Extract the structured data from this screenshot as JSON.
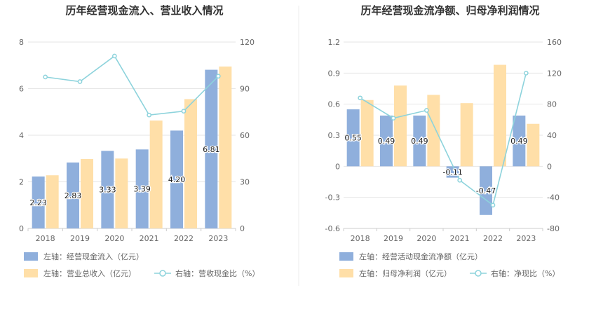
{
  "chart_data": [
    {
      "type": "bar",
      "title": "历年经营现金流入、营业收入情况",
      "categories": [
        "2018",
        "2019",
        "2020",
        "2021",
        "2022",
        "2023"
      ],
      "left_axis": {
        "ylim": [
          0,
          8
        ],
        "ticks": [
          "0",
          "2",
          "4",
          "6",
          "8"
        ]
      },
      "right_axis": {
        "ylim": [
          0,
          120
        ],
        "ticks": [
          "0",
          "30",
          "60",
          "90",
          "120"
        ]
      },
      "grid": true,
      "legend_position": "bottom",
      "series": [
        {
          "name": "经营现金流入（亿元）",
          "legend": "左轴：经营现金流入（亿元）",
          "axis": "left",
          "kind": "bar",
          "color": "#8fafdc",
          "values": [
            2.23,
            2.83,
            3.33,
            3.39,
            4.2,
            6.81
          ],
          "labels": [
            "2.23",
            "2.83",
            "3.33",
            "3.39",
            "4.20",
            "6.81"
          ]
        },
        {
          "name": "营业总收入（亿元）",
          "legend": "左轴：营业总收入（亿元）",
          "axis": "left",
          "kind": "bar",
          "color": "#ffdfa8",
          "values": [
            2.28,
            2.98,
            3.0,
            4.63,
            5.55,
            6.95
          ]
        },
        {
          "name": "营收现金比（%）",
          "legend": "右轴：营收现金比（%）",
          "axis": "right",
          "kind": "line",
          "color": "#8dd3dc",
          "values": [
            97.5,
            94.5,
            111.0,
            73.0,
            75.5,
            98.0
          ]
        }
      ]
    },
    {
      "type": "bar",
      "title": "历年经营现金流净额、归母净利润情况",
      "categories": [
        "2018",
        "2019",
        "2020",
        "2021",
        "2022",
        "2023"
      ],
      "left_axis": {
        "ylim": [
          -0.6,
          1.2
        ],
        "ticks": [
          "-0.6",
          "-0.3",
          "0",
          "0.3",
          "0.6",
          "0.9",
          "1.2"
        ]
      },
      "right_axis": {
        "ylim": [
          -80,
          160
        ],
        "ticks": [
          "-80",
          "-40",
          "0",
          "40",
          "80",
          "120",
          "160"
        ]
      },
      "grid": true,
      "legend_position": "bottom",
      "series": [
        {
          "name": "经营活动现金流净额（亿元）",
          "legend": "左轴：经营活动现金流净额（亿元）",
          "axis": "left",
          "kind": "bar",
          "color": "#8fafdc",
          "values": [
            0.55,
            0.49,
            0.49,
            -0.11,
            -0.47,
            0.49
          ],
          "labels": [
            "0.55",
            "0.49",
            "0.49",
            "-0.11",
            "-0.47",
            "0.49"
          ]
        },
        {
          "name": "归母净利润（亿元）",
          "legend": "左轴：归母净利润（亿元）",
          "axis": "left",
          "kind": "bar",
          "color": "#ffdfa8",
          "values": [
            0.64,
            0.78,
            0.69,
            0.61,
            0.98,
            0.41
          ]
        },
        {
          "name": "净现比（%）",
          "legend": "右轴：净现比（%）",
          "axis": "right",
          "kind": "line",
          "color": "#8dd3dc",
          "values": [
            88,
            62,
            72,
            -18,
            -50,
            120
          ]
        }
      ]
    }
  ]
}
